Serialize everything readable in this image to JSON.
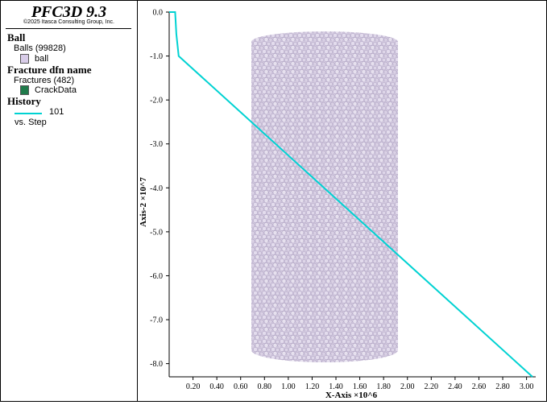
{
  "app": {
    "title": "PFC3D 9.3",
    "copyright": "©2025 Itasca Consulting Group, Inc."
  },
  "legend": {
    "ball": {
      "header": "Ball",
      "group": "Balls (99828)",
      "item": "ball",
      "swatch_color": "#d8cce8"
    },
    "fracture": {
      "header": "Fracture dfn name",
      "group": "Fractures (482)",
      "item": "CrackData",
      "swatch_color": "#1f7a4a"
    },
    "history": {
      "header": "History",
      "item": "101",
      "subtitle": "vs. Step",
      "line_color": "#00d2d2"
    }
  },
  "chart_data": {
    "type": "line",
    "xlabel": "X-Axis ×10^6",
    "ylabel": "Axis-2 ×10^7",
    "xlim": [
      0.0,
      3.05
    ],
    "ylim": [
      -8.3,
      0.0
    ],
    "x_ticks": [
      "0.20",
      "0.40",
      "0.60",
      "0.80",
      "1.00",
      "1.20",
      "1.40",
      "1.60",
      "1.80",
      "2.00",
      "2.20",
      "2.40",
      "2.60",
      "2.80",
      "3.00"
    ],
    "y_ticks": [
      "0.0",
      "-1.0",
      "-2.0",
      "-3.0",
      "-4.0",
      "-5.0",
      "-6.0",
      "-7.0",
      "-8.0"
    ],
    "series": [
      {
        "name": "101",
        "color": "#00d2d2",
        "x": [
          0.0,
          0.05,
          0.06,
          0.08,
          3.05
        ],
        "y": [
          0.0,
          0.0,
          -0.5,
          -1.0,
          -8.3
        ]
      }
    ]
  }
}
